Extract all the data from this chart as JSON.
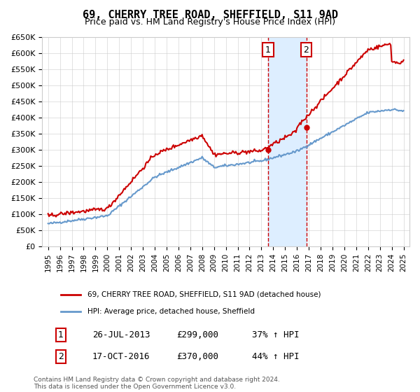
{
  "title": "69, CHERRY TREE ROAD, SHEFFIELD, S11 9AD",
  "subtitle": "Price paid vs. HM Land Registry's House Price Index (HPI)",
  "legend_line1": "69, CHERRY TREE ROAD, SHEFFIELD, S11 9AD (detached house)",
  "legend_line2": "HPI: Average price, detached house, Sheffield",
  "annotation1_label": "1",
  "annotation1_date": "26-JUL-2013",
  "annotation1_price": "£299,000",
  "annotation1_hpi": "37% ↑ HPI",
  "annotation2_label": "2",
  "annotation2_date": "17-OCT-2016",
  "annotation2_price": "£370,000",
  "annotation2_hpi": "44% ↑ HPI",
  "footer": "Contains HM Land Registry data © Crown copyright and database right 2024.\nThis data is licensed under the Open Government Licence v3.0.",
  "red_color": "#cc0000",
  "blue_color": "#6699cc",
  "shade_color": "#ddeeff",
  "marker_box_color": "#cc0000",
  "ylim": [
    0,
    650000
  ],
  "yticks": [
    0,
    50000,
    100000,
    150000,
    200000,
    250000,
    300000,
    350000,
    400000,
    450000,
    500000,
    550000,
    600000,
    650000
  ],
  "ytick_labels": [
    "£0",
    "£50K",
    "£100K",
    "£150K",
    "£200K",
    "£250K",
    "£300K",
    "£350K",
    "£400K",
    "£450K",
    "£500K",
    "£550K",
    "£600K",
    "£650K"
  ],
  "xtick_years": [
    1995,
    1996,
    1997,
    1998,
    1999,
    2000,
    2001,
    2002,
    2003,
    2004,
    2005,
    2006,
    2007,
    2008,
    2009,
    2010,
    2011,
    2012,
    2013,
    2014,
    2015,
    2016,
    2017,
    2018,
    2019,
    2020,
    2021,
    2022,
    2023,
    2024,
    2025
  ],
  "transaction1_year": 2013.57,
  "transaction2_year": 2016.79,
  "transaction1_price": 299000,
  "transaction2_price": 370000
}
